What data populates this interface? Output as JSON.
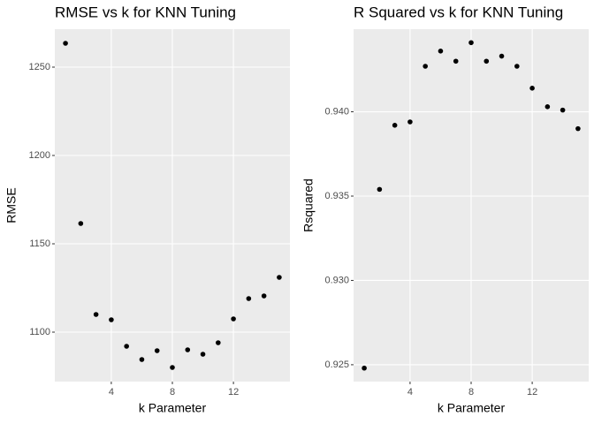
{
  "chart_data": [
    {
      "type": "scatter",
      "title": "RMSE vs k for KNN Tuning",
      "x_label": "k Parameter",
      "y_label": "RMSE",
      "x": [
        1,
        2,
        3,
        4,
        5,
        6,
        7,
        8,
        9,
        10,
        11,
        12,
        13,
        14,
        15
      ],
      "values": [
        1263.5,
        1161.5,
        1110,
        1107,
        1092,
        1084.5,
        1089.5,
        1080,
        1090,
        1087.5,
        1094,
        1107.5,
        1119,
        1120.5,
        1131
      ],
      "color": "#000000",
      "xlim": [
        0.3,
        15.7
      ],
      "xticks": [
        4,
        8,
        12
      ],
      "ylim": [
        1072,
        1271.5
      ],
      "yticks": [
        1100,
        1150,
        1200,
        1250
      ],
      "grid": true
    },
    {
      "type": "scatter",
      "title": "R Squared vs k for KNN Tuning",
      "x_label": "k Parameter",
      "y_label": "Rsquared",
      "x": [
        1,
        2,
        3,
        4,
        5,
        6,
        7,
        8,
        9,
        10,
        11,
        12,
        13,
        14,
        15
      ],
      "values": [
        0.9248,
        0.9354,
        0.9392,
        0.9394,
        0.9427,
        0.9436,
        0.943,
        0.9441,
        0.943,
        0.9433,
        0.9427,
        0.9414,
        0.9403,
        0.9401,
        0.939
      ],
      "color": "#000000",
      "xlim": [
        0.3,
        15.7
      ],
      "xticks": [
        4,
        8,
        12
      ],
      "ylim": [
        0.924,
        0.9449
      ],
      "yticks": [
        {
          "value": 0.925,
          "label": "0.925"
        },
        {
          "value": 0.93,
          "label": "0.930"
        },
        {
          "value": 0.935,
          "label": "0.935"
        },
        {
          "value": 0.94,
          "label": "0.940"
        }
      ],
      "grid": true
    }
  ]
}
